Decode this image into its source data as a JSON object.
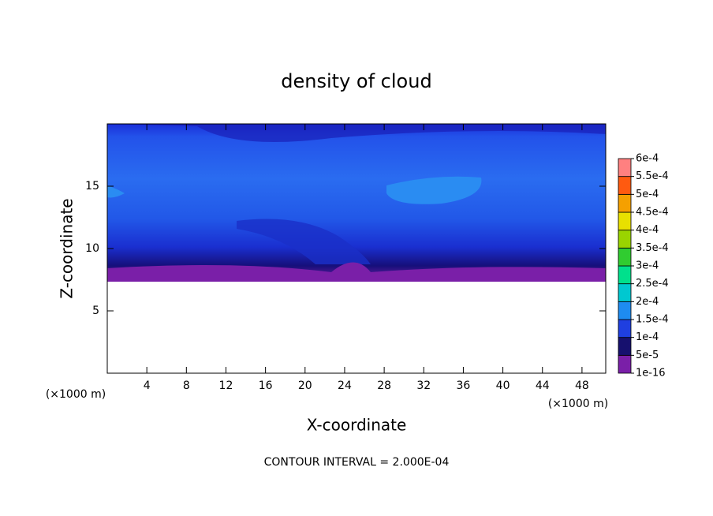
{
  "chart_data": {
    "type": "contour",
    "title": "density of cloud",
    "x_label": "X-coordinate",
    "y_label": "Z-coordinate",
    "x_unit": "(×1000 m)",
    "y_unit": "(×1000 m)",
    "note": "CONTOUR INTERVAL = 2.000E-04",
    "xlim": [
      0,
      50.4
    ],
    "ylim": [
      0,
      20
    ],
    "xticks": [
      4,
      8,
      12,
      16,
      20,
      24,
      28,
      32,
      36,
      40,
      44,
      48
    ],
    "yticks": [
      5,
      10,
      15
    ],
    "colorbar": {
      "levels": [
        {
          "value": 1e-16,
          "label": "1e-16"
        },
        {
          "value": 5e-05,
          "label": "5e-5"
        },
        {
          "value": 0.0001,
          "label": "1e-4"
        },
        {
          "value": 0.00015,
          "label": "1.5e-4"
        },
        {
          "value": 0.0002,
          "label": "2e-4"
        },
        {
          "value": 0.00025,
          "label": "2.5e-4"
        },
        {
          "value": 0.0003,
          "label": "3e-4"
        },
        {
          "value": 0.00035,
          "label": "3.5e-4"
        },
        {
          "value": 0.0004,
          "label": "4e-4"
        },
        {
          "value": 0.00045,
          "label": "4.5e-4"
        },
        {
          "value": 0.0005,
          "label": "5e-4"
        },
        {
          "value": 0.00055,
          "label": "5.5e-4"
        },
        {
          "value": 0.0006,
          "label": "6e-4"
        }
      ],
      "colors": [
        "#7a1fa8",
        "#16106e",
        "#1f3fe0",
        "#1e8cf0",
        "#00c8d0",
        "#00e08c",
        "#30cc30",
        "#9ad400",
        "#e8e000",
        "#f5a000",
        "#ff5a10",
        "#ff8080"
      ]
    }
  }
}
